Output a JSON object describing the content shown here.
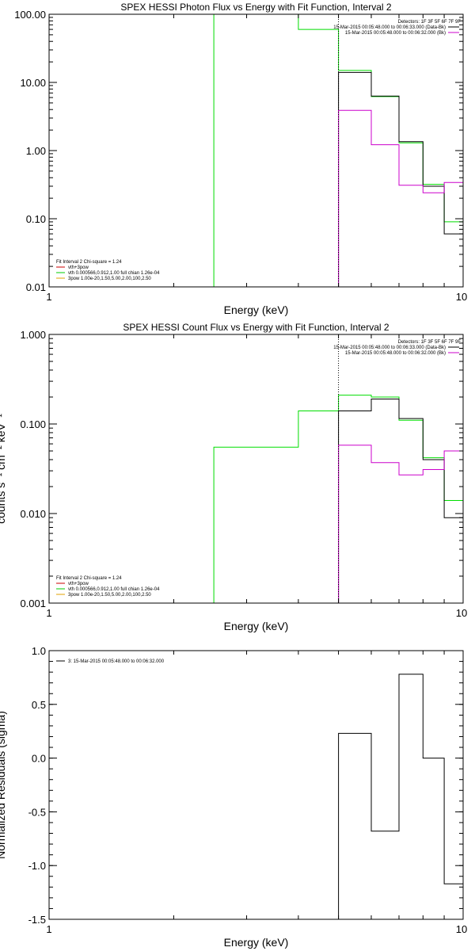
{
  "chart_data": [
    {
      "type": "line",
      "title": "SPEX HESSI Photon Flux vs Energy with Fit Function, Interval 2",
      "xlabel": "Energy (keV)",
      "ylabel": "",
      "xscale": "log",
      "yscale": "log",
      "xlim": [
        1,
        10
      ],
      "ylim": [
        0.01,
        100
      ],
      "xticks": [
        {
          "v": 1,
          "t": "1"
        },
        {
          "v": 10,
          "t": "10"
        }
      ],
      "yticks": [
        {
          "v": 100,
          "t": "100.00"
        },
        {
          "v": 10,
          "t": "10.00"
        },
        {
          "v": 1,
          "t": "1.00"
        },
        {
          "v": 0.1,
          "t": "0.10"
        },
        {
          "v": 0.01,
          "t": "0.01"
        }
      ],
      "vline": 5.0,
      "legend_right": [
        {
          "text": "Detectors: 1F 3F 5F 6F 7F 9F",
          "color": "#000000"
        },
        {
          "text": "15-Mar-2015 00:05:48.000 to 00:06:33.000 (Data-Bk)",
          "color": "#000000"
        },
        {
          "text": "15-Mar-2015 00:05:48.000 to 00:06:32.000 (Bk)",
          "color": "#cc00cc"
        }
      ],
      "legend_left": [
        {
          "text": "Fit Interval 2   Chi-square = 1.24",
          "color": null
        },
        {
          "text": "vth+3pow",
          "color": "#cc0000"
        },
        {
          "text": "vth 0.000566,0.912,1.00  full chian 1.26e-04",
          "color": "#00cc00"
        },
        {
          "text": "3pow 1.00e-20,1.50,5.00,2.00,100,2.50",
          "color": "#e0a000"
        }
      ],
      "series": [
        {
          "color": "#00dd00",
          "edges": [
            2.5,
            3.0,
            4.0,
            5.0,
            6.0,
            7.0,
            8.0,
            9.0,
            10.0
          ],
          "values": [
            100,
            100,
            60,
            15,
            6.2,
            1.3,
            0.32,
            0.09
          ],
          "from": 0.01
        },
        {
          "color": "#000000",
          "edges": [
            5.0,
            6.0,
            7.0,
            8.0,
            9.0,
            10.0
          ],
          "values": [
            14,
            6.3,
            1.35,
            0.3,
            0.06
          ],
          "from": 0.01
        },
        {
          "color": "#cc00cc",
          "edges": [
            5.0,
            6.0,
            7.0,
            8.0,
            9.0,
            10.0
          ],
          "values": [
            3.9,
            1.22,
            0.31,
            0.24,
            0.34
          ],
          "from": 0.01
        }
      ]
    },
    {
      "type": "line",
      "title": "SPEX HESSI Count Flux vs Energy with Fit Function, Interval 2",
      "xlabel": "Energy (keV)",
      "ylabel": "counts s⁻¹ cm⁻² keV⁻¹",
      "xscale": "log",
      "yscale": "log",
      "xlim": [
        1,
        10
      ],
      "ylim": [
        0.001,
        1
      ],
      "xticks": [
        {
          "v": 1,
          "t": "1"
        },
        {
          "v": 10,
          "t": "10"
        }
      ],
      "yticks": [
        {
          "v": 1,
          "t": "1.000"
        },
        {
          "v": 0.1,
          "t": "0.100"
        },
        {
          "v": 0.01,
          "t": "0.010"
        },
        {
          "v": 0.001,
          "t": "0.001"
        }
      ],
      "vline": 5.0,
      "legend_right": [
        {
          "text": "Detectors: 1F 3F 5F 6F 7F 9F",
          "color": "#000000"
        },
        {
          "text": "15-Mar-2015 00:05:48.000 to 00:06:33.000 (Data-Bk)",
          "color": "#000000"
        },
        {
          "text": "15-Mar-2015 00:05:48.000 to 00:06:32.000 (Bk)",
          "color": "#cc00cc"
        }
      ],
      "legend_left": [
        {
          "text": "Fit Interval 2   Chi-square = 1.24",
          "color": null
        },
        {
          "text": "vth+3pow",
          "color": "#cc0000"
        },
        {
          "text": "vth 0.000566,0.912,1.00  full chian 1.26e-04",
          "color": "#00cc00"
        },
        {
          "text": "3pow 1.00e-20,1.50,5.00,2.00,100,2.50",
          "color": "#e0a000"
        }
      ],
      "series": [
        {
          "color": "#00dd00",
          "edges": [
            2.5,
            3.0,
            4.0,
            5.0,
            6.0,
            7.0,
            8.0,
            9.0,
            10.0
          ],
          "values": [
            0.055,
            0.055,
            0.14,
            0.21,
            0.2,
            0.11,
            0.042,
            0.014
          ],
          "from": 0.001
        },
        {
          "color": "#000000",
          "edges": [
            5.0,
            6.0,
            7.0,
            8.0,
            9.0,
            10.0
          ],
          "values": [
            0.14,
            0.19,
            0.115,
            0.04,
            0.009
          ],
          "from": 0.001
        },
        {
          "color": "#cc00cc",
          "edges": [
            5.0,
            6.0,
            7.0,
            8.0,
            9.0,
            10.0
          ],
          "values": [
            0.058,
            0.037,
            0.027,
            0.031,
            0.05
          ],
          "from": 0.001
        }
      ]
    },
    {
      "type": "line",
      "title": "",
      "xlabel": "Energy (keV)",
      "ylabel": "Normalized Residuals (sigma)",
      "xscale": "log",
      "yscale": "linear",
      "xlim": [
        1,
        10
      ],
      "ylim": [
        -1.5,
        1.0
      ],
      "xticks": [
        {
          "v": 1,
          "t": "1"
        },
        {
          "v": 10,
          "t": "10"
        }
      ],
      "yticks": [
        {
          "v": 1.0,
          "t": "1.0"
        },
        {
          "v": 0.5,
          "t": "0.5"
        },
        {
          "v": 0.0,
          "t": "0.0"
        },
        {
          "v": -0.5,
          "t": "-0.5"
        },
        {
          "v": -1.0,
          "t": "-1.0"
        },
        {
          "v": -1.5,
          "t": "-1.5"
        }
      ],
      "vline": null,
      "legend_right": [],
      "legend_left": [
        {
          "text": "3: 15-Mar-2015 00:05:48.000 to 00:06:32.000",
          "color": "#000000"
        }
      ],
      "series": [
        {
          "color": "#000000",
          "edges": [
            5.0,
            6.0,
            7.0,
            8.0,
            9.0,
            10.0
          ],
          "values": [
            0.23,
            -0.68,
            0.78,
            0.0,
            -1.17
          ],
          "from": -1.5
        }
      ]
    }
  ]
}
